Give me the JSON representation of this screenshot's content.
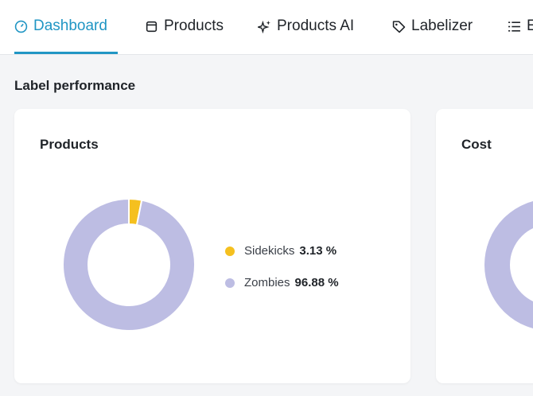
{
  "tabs": [
    "Dashboard",
    "Products",
    "Products AI",
    "Labelizer",
    "E"
  ],
  "section_title": "Label performance",
  "cards": [
    {
      "title": "Cost"
    }
  ],
  "chart_data": {
    "type": "donut",
    "title": "Products",
    "categories": [
      "Sidekicks",
      "Zombies"
    ],
    "values": [
      3.13,
      96.88
    ],
    "value_labels": [
      "3.13 %",
      "96.88 %"
    ],
    "colors": [
      "#f5c01f",
      "#bdbde3"
    ]
  }
}
